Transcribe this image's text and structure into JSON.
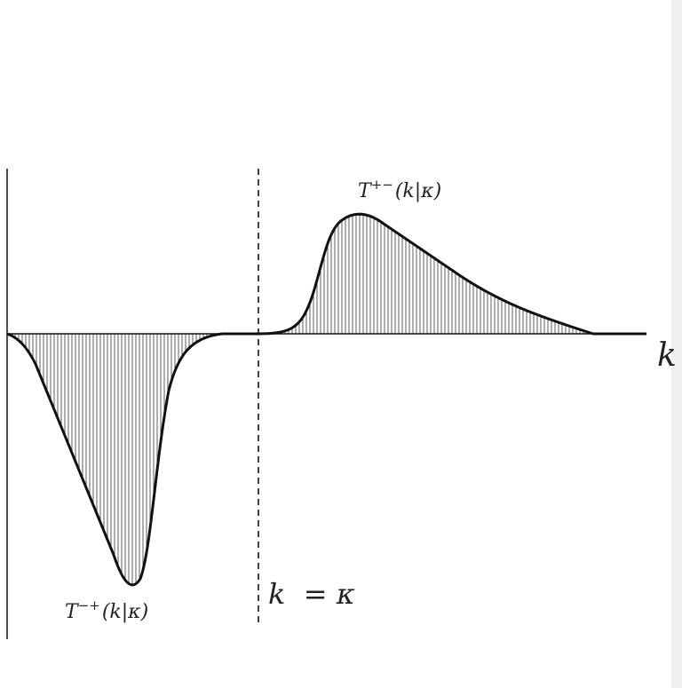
{
  "diagram": {
    "curve_upper_label": {
      "main": "T",
      "sup": "+−",
      "arg": "(k|κ)"
    },
    "curve_lower_label": {
      "main": "T",
      "sup": "−+",
      "arg": "(k|κ)"
    },
    "axis_label": "k",
    "divider_label": "k  = κ",
    "colors": {
      "stroke": "#111111",
      "hatch": "#333333",
      "background": "#ffffff"
    }
  }
}
